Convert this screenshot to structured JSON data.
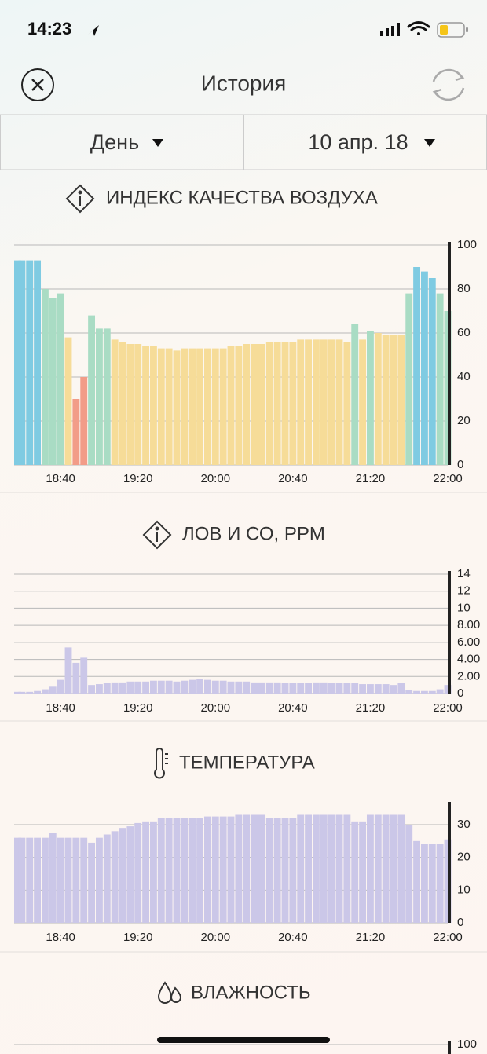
{
  "status": {
    "time": "14:23"
  },
  "header": {
    "title": "История"
  },
  "selectors": {
    "period": "День",
    "date": "10 апр. 18"
  },
  "chart_data": [
    {
      "type": "bar",
      "title": "ИНДЕКС КАЧЕСТВА ВОЗДУХА",
      "categories": [
        null,
        null,
        null,
        null,
        null,
        null,
        "18:40",
        null,
        null,
        null,
        null,
        null,
        null,
        null,
        null,
        null,
        "19:20",
        null,
        null,
        null,
        null,
        null,
        null,
        null,
        null,
        null,
        "20:00",
        null,
        null,
        null,
        null,
        null,
        null,
        null,
        null,
        null,
        "20:40",
        null,
        null,
        null,
        null,
        null,
        null,
        null,
        null,
        null,
        "21:20",
        null,
        null,
        null,
        null,
        null,
        null,
        null,
        null,
        null,
        "22:00"
      ],
      "values": [
        93,
        93,
        93,
        93,
        80,
        76,
        78,
        58,
        30,
        40,
        68,
        62,
        62,
        57,
        56,
        55,
        55,
        54,
        54,
        53,
        53,
        52,
        53,
        53,
        53,
        53,
        53,
        53,
        54,
        54,
        55,
        55,
        55,
        56,
        56,
        56,
        56,
        57,
        57,
        57,
        57,
        57,
        57,
        56,
        64,
        57,
        61,
        60,
        59,
        59,
        59,
        78,
        90,
        88,
        85,
        78,
        70
      ],
      "colors": [
        "#7fcbe2",
        "#7fcbe2",
        "#7fcbe2",
        "#7fcbe2",
        "#a9dcc4",
        "#a9dcc4",
        "#a9dcc4",
        "#f6dc98",
        "#f29c88",
        "#f29c88",
        "#a9dcc4",
        "#a9dcc4",
        "#a9dcc4",
        "#f6dc98",
        "#f6dc98",
        "#f6dc98",
        "#f6dc98",
        "#f6dc98",
        "#f6dc98",
        "#f6dc98",
        "#f6dc98",
        "#f6dc98",
        "#f6dc98",
        "#f6dc98",
        "#f6dc98",
        "#f6dc98",
        "#f6dc98",
        "#f6dc98",
        "#f6dc98",
        "#f6dc98",
        "#f6dc98",
        "#f6dc98",
        "#f6dc98",
        "#f6dc98",
        "#f6dc98",
        "#f6dc98",
        "#f6dc98",
        "#f6dc98",
        "#f6dc98",
        "#f6dc98",
        "#f6dc98",
        "#f6dc98",
        "#f6dc98",
        "#f6dc98",
        "#a9dcc4",
        "#f6dc98",
        "#a9dcc4",
        "#f6dc98",
        "#f6dc98",
        "#f6dc98",
        "#f6dc98",
        "#a9dcc4",
        "#7fcbe2",
        "#7fcbe2",
        "#7fcbe2",
        "#a9dcc4",
        "#a9dcc4"
      ],
      "ylim": [
        0,
        100
      ],
      "yticks": [
        0,
        20,
        40,
        60,
        80,
        100
      ],
      "grid": true
    },
    {
      "type": "bar",
      "title": "ЛОВ И СО, PPM",
      "categories": [
        null,
        null,
        null,
        null,
        null,
        null,
        "18:40",
        null,
        null,
        null,
        null,
        null,
        null,
        null,
        null,
        null,
        "19:20",
        null,
        null,
        null,
        null,
        null,
        null,
        null,
        null,
        null,
        "20:00",
        null,
        null,
        null,
        null,
        null,
        null,
        null,
        null,
        null,
        "20:40",
        null,
        null,
        null,
        null,
        null,
        null,
        null,
        null,
        null,
        "21:20",
        null,
        null,
        null,
        null,
        null,
        null,
        null,
        null,
        null,
        "22:00"
      ],
      "values": [
        0.2,
        0.2,
        0.2,
        0.3,
        0.5,
        0.8,
        1.6,
        5.4,
        3.6,
        4.2,
        1.0,
        1.1,
        1.2,
        1.3,
        1.3,
        1.4,
        1.4,
        1.4,
        1.5,
        1.5,
        1.5,
        1.4,
        1.5,
        1.6,
        1.7,
        1.6,
        1.5,
        1.5,
        1.4,
        1.4,
        1.4,
        1.3,
        1.3,
        1.3,
        1.3,
        1.2,
        1.2,
        1.2,
        1.2,
        1.3,
        1.3,
        1.2,
        1.2,
        1.2,
        1.2,
        1.1,
        1.1,
        1.1,
        1.1,
        1.0,
        1.2,
        0.4,
        0.3,
        0.3,
        0.3,
        0.5,
        1.0
      ],
      "color": "#cbc7e8",
      "ylim": [
        0,
        14
      ],
      "yticks": [
        0,
        {
          "value": 2,
          "label": "2.00"
        },
        {
          "value": 4,
          "label": "4.00"
        },
        {
          "value": 6,
          "label": "6.00"
        },
        {
          "value": 8,
          "label": "8.00"
        },
        10,
        12,
        14
      ],
      "grid": true
    },
    {
      "type": "bar",
      "title": "ТЕМПЕРАТУРА",
      "categories": [
        null,
        null,
        null,
        null,
        null,
        null,
        "18:40",
        null,
        null,
        null,
        null,
        null,
        null,
        null,
        null,
        null,
        "19:20",
        null,
        null,
        null,
        null,
        null,
        null,
        null,
        null,
        null,
        "20:00",
        null,
        null,
        null,
        null,
        null,
        null,
        null,
        null,
        null,
        "20:40",
        null,
        null,
        null,
        null,
        null,
        null,
        null,
        null,
        null,
        "21:20",
        null,
        null,
        null,
        null,
        null,
        null,
        null,
        null,
        null,
        "22:00"
      ],
      "values": [
        26,
        26,
        26,
        26,
        26,
        27.5,
        26,
        26,
        26,
        26,
        24.5,
        26,
        27,
        28,
        29,
        29.5,
        30.5,
        31,
        31,
        32,
        32,
        32,
        32,
        32,
        32,
        32.5,
        32.5,
        32.5,
        32.5,
        33,
        33,
        33,
        33,
        32,
        32,
        32,
        32,
        33,
        33,
        33,
        33,
        33,
        33,
        33,
        31,
        31,
        33,
        33,
        33,
        33,
        33,
        30,
        25,
        24,
        24,
        24,
        25.5
      ],
      "color": "#cbc7e8",
      "ylim": [
        0,
        36
      ],
      "yticks": [
        0,
        10,
        20,
        30
      ],
      "grid": true
    },
    {
      "type": "bar",
      "title": "ВЛАЖНОСТЬ",
      "ylim": [
        0,
        100
      ],
      "yticks": [
        100
      ],
      "grid": true
    }
  ]
}
